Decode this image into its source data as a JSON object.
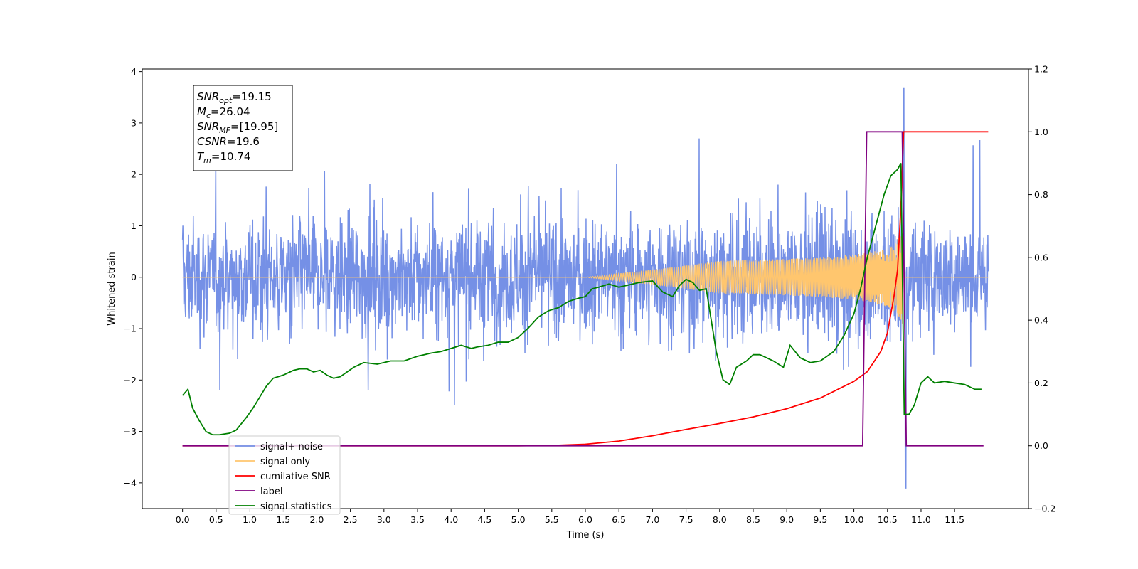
{
  "chart_data": {
    "type": "line",
    "xlabel": "Time (s)",
    "ylabel": "Whitened strain",
    "xlim": [
      -0.6,
      12.6
    ],
    "ylim_left": [
      -4.5,
      4.05
    ],
    "ylim_right": [
      -0.2,
      1.2
    ],
    "x_ticks": [
      "0.0",
      "0.5",
      "1.0",
      "1.5",
      "2.0",
      "2.5",
      "3.0",
      "3.5",
      "4.0",
      "4.5",
      "5.0",
      "5.5",
      "6.0",
      "6.5",
      "7.0",
      "7.5",
      "8.0",
      "8.5",
      "9.0",
      "9.5",
      "10.0",
      "10.5",
      "11.0",
      "11.5"
    ],
    "y_ticks_left": [
      "4",
      "3",
      "2",
      "1",
      "0",
      "−1",
      "−2",
      "−3",
      "−4"
    ],
    "y_ticks_right": [
      "1.2",
      "1.0",
      "0.8",
      "0.6",
      "0.4",
      "0.2",
      "0.0",
      "−0.2"
    ],
    "legend": {
      "placement": "lower-left",
      "entries": [
        {
          "label": "signal+ noise",
          "color": "#7590e6"
        },
        {
          "label": "signal only",
          "color": "#ffc66e"
        },
        {
          "label": "cumilative SNR",
          "color": "#ff0000"
        },
        {
          "label": "label",
          "color": "#800080"
        },
        {
          "label": "signal statistics",
          "color": "#008000"
        }
      ]
    },
    "stats_box": [
      {
        "name": "SNR",
        "sub": "opt",
        "value": "=19.15"
      },
      {
        "name": "M",
        "sub": "c",
        "value": "=26.04"
      },
      {
        "name": "SNR",
        "sub": "MF",
        "value": "=[19.95]"
      },
      {
        "name": "CSNR",
        "sub": "",
        "value": "=19.6"
      },
      {
        "name": "T",
        "sub": "m",
        "value": "=10.74"
      }
    ],
    "series": [
      {
        "name": "signal+ noise",
        "axis": "left",
        "color": "#7590e6",
        "x_range": [
          0.0,
          12.0
        ],
        "envelope_amplitude": 1.5,
        "max_value": 3.67,
        "min_value": -4.1,
        "peak_time": 10.74
      },
      {
        "name": "signal only",
        "axis": "left",
        "color": "#ffc66e",
        "chirp_start": 6.0,
        "merger_time": 10.74,
        "peak_amplitude": 1.3
      },
      {
        "name": "cumilative SNR",
        "axis": "right",
        "color": "#ff0000",
        "x": [
          0,
          5,
          5.5,
          6,
          6.5,
          7,
          7.5,
          8,
          8.5,
          9,
          9.5,
          10,
          10.2,
          10.4,
          10.5,
          10.6,
          10.65,
          10.7,
          10.72,
          10.74,
          10.8,
          11,
          11.5,
          12
        ],
        "y": [
          0,
          0,
          0.001,
          0.005,
          0.015,
          0.032,
          0.052,
          0.071,
          0.092,
          0.118,
          0.152,
          0.205,
          0.236,
          0.3,
          0.36,
          0.48,
          0.56,
          0.76,
          0.88,
          1.0,
          1.0,
          1.0,
          1.0,
          1.0
        ]
      },
      {
        "name": "label",
        "axis": "right",
        "color": "#800080",
        "x": [
          0,
          10.13,
          10.19,
          10.72,
          10.78,
          11.93
        ],
        "y": [
          0,
          0,
          1,
          1,
          0,
          0
        ]
      },
      {
        "name": "signal statistics",
        "axis": "right",
        "color": "#008000",
        "x": [
          0,
          0.08,
          0.15,
          0.25,
          0.35,
          0.45,
          0.55,
          0.7,
          0.8,
          0.95,
          1.05,
          1.15,
          1.25,
          1.35,
          1.5,
          1.65,
          1.75,
          1.85,
          1.95,
          2.05,
          2.15,
          2.25,
          2.35,
          2.45,
          2.55,
          2.7,
          2.9,
          3.1,
          3.3,
          3.5,
          3.6,
          3.7,
          3.85,
          4.0,
          4.15,
          4.3,
          4.4,
          4.55,
          4.7,
          4.85,
          5.0,
          5.15,
          5.3,
          5.45,
          5.6,
          5.75,
          5.9,
          6.0,
          6.1,
          6.2,
          6.35,
          6.5,
          6.6,
          6.8,
          7.0,
          7.15,
          7.3,
          7.4,
          7.5,
          7.6,
          7.7,
          7.8,
          7.95,
          8.05,
          8.15,
          8.25,
          8.4,
          8.5,
          8.6,
          8.7,
          8.8,
          8.95,
          9.05,
          9.2,
          9.35,
          9.5,
          9.7,
          9.85,
          10.0,
          10.1,
          10.2,
          10.35,
          10.45,
          10.55,
          10.65,
          10.7,
          10.75,
          10.82,
          10.9,
          11.0,
          11.1,
          11.2,
          11.35,
          11.5,
          11.65,
          11.8,
          11.9
        ],
        "y": [
          0.16,
          0.18,
          0.12,
          0.08,
          0.045,
          0.035,
          0.035,
          0.04,
          0.05,
          0.09,
          0.12,
          0.155,
          0.19,
          0.215,
          0.225,
          0.24,
          0.245,
          0.245,
          0.235,
          0.24,
          0.225,
          0.215,
          0.22,
          0.235,
          0.25,
          0.265,
          0.26,
          0.27,
          0.27,
          0.285,
          0.29,
          0.295,
          0.3,
          0.31,
          0.32,
          0.31,
          0.315,
          0.32,
          0.33,
          0.33,
          0.345,
          0.375,
          0.41,
          0.43,
          0.44,
          0.46,
          0.47,
          0.475,
          0.5,
          0.505,
          0.515,
          0.505,
          0.51,
          0.52,
          0.525,
          0.49,
          0.475,
          0.51,
          0.53,
          0.52,
          0.495,
          0.5,
          0.3,
          0.21,
          0.195,
          0.25,
          0.27,
          0.29,
          0.29,
          0.28,
          0.27,
          0.25,
          0.32,
          0.28,
          0.265,
          0.27,
          0.3,
          0.35,
          0.42,
          0.5,
          0.6,
          0.72,
          0.8,
          0.86,
          0.88,
          0.9,
          0.1,
          0.1,
          0.13,
          0.2,
          0.22,
          0.2,
          0.205,
          0.2,
          0.195,
          0.18,
          0.18
        ]
      }
    ]
  }
}
